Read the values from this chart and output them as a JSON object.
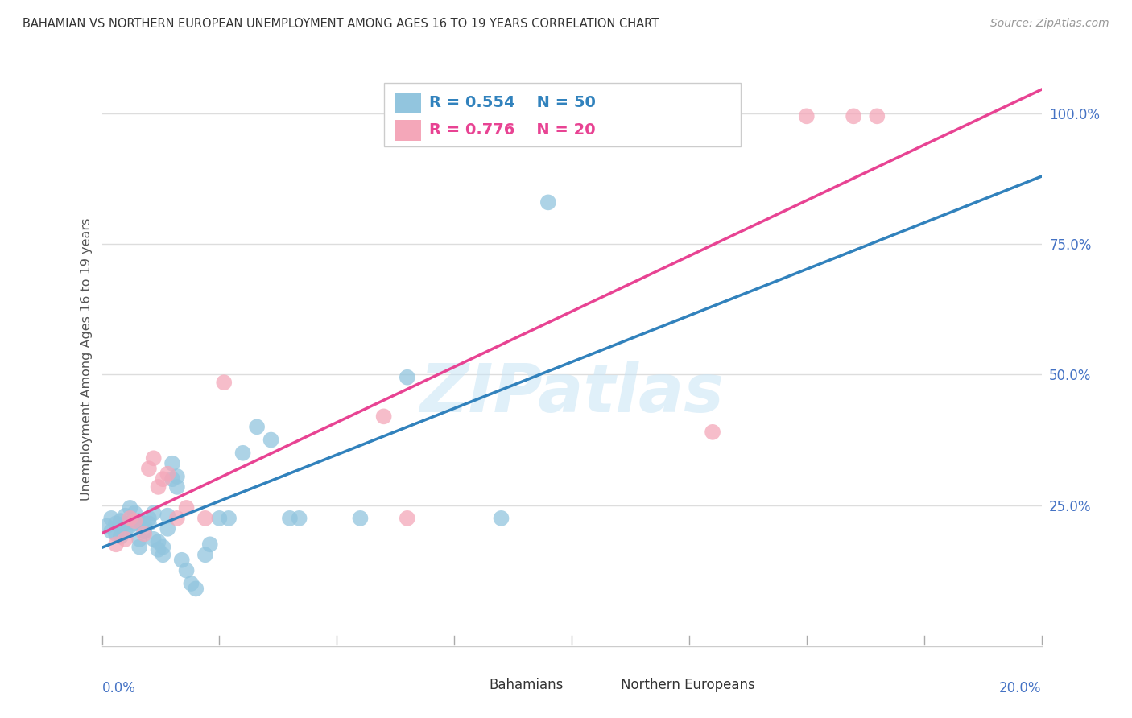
{
  "title": "BAHAMIAN VS NORTHERN EUROPEAN UNEMPLOYMENT AMONG AGES 16 TO 19 YEARS CORRELATION CHART",
  "source": "Source: ZipAtlas.com",
  "ylabel": "Unemployment Among Ages 16 to 19 years",
  "bahamian_color": "#92c5de",
  "northern_color": "#f4a7b9",
  "bahamian_line_color": "#3182bd",
  "northern_line_color": "#e84393",
  "dashed_line_color": "#aaaaaa",
  "axis_color": "#4472c4",
  "R_bahamian": 0.554,
  "N_bahamian": 50,
  "R_northern": 0.776,
  "N_northern": 20,
  "xlim": [
    0.0,
    0.2
  ],
  "ylim": [
    -0.02,
    1.08
  ],
  "yticks": [
    0.25,
    0.5,
    0.75,
    1.0
  ],
  "ytick_labels": [
    "25.0%",
    "50.0%",
    "75.0%",
    "100.0%"
  ],
  "watermark": "ZIPatlas",
  "background_color": "#ffffff",
  "grid_color": "#dddddd",
  "bahamian_x": [
    0.001,
    0.002,
    0.002,
    0.003,
    0.003,
    0.004,
    0.004,
    0.005,
    0.005,
    0.005,
    0.006,
    0.006,
    0.007,
    0.007,
    0.008,
    0.008,
    0.008,
    0.009,
    0.009,
    0.01,
    0.01,
    0.011,
    0.011,
    0.012,
    0.012,
    0.013,
    0.013,
    0.014,
    0.014,
    0.015,
    0.015,
    0.016,
    0.016,
    0.017,
    0.018,
    0.019,
    0.02,
    0.022,
    0.023,
    0.025,
    0.027,
    0.03,
    0.033,
    0.036,
    0.04,
    0.042,
    0.055,
    0.065,
    0.085,
    0.095
  ],
  "bahamian_y": [
    0.21,
    0.225,
    0.2,
    0.215,
    0.195,
    0.22,
    0.19,
    0.2,
    0.23,
    0.215,
    0.245,
    0.21,
    0.235,
    0.215,
    0.22,
    0.17,
    0.185,
    0.215,
    0.2,
    0.215,
    0.225,
    0.235,
    0.185,
    0.18,
    0.165,
    0.155,
    0.17,
    0.205,
    0.23,
    0.3,
    0.33,
    0.285,
    0.305,
    0.145,
    0.125,
    0.1,
    0.09,
    0.155,
    0.175,
    0.225,
    0.225,
    0.35,
    0.4,
    0.375,
    0.225,
    0.225,
    0.225,
    0.495,
    0.225,
    0.83
  ],
  "northern_x": [
    0.003,
    0.005,
    0.006,
    0.007,
    0.009,
    0.01,
    0.011,
    0.012,
    0.013,
    0.014,
    0.016,
    0.018,
    0.022,
    0.026,
    0.06,
    0.065,
    0.13,
    0.15,
    0.16,
    0.165
  ],
  "northern_y": [
    0.175,
    0.185,
    0.225,
    0.22,
    0.195,
    0.32,
    0.34,
    0.285,
    0.3,
    0.31,
    0.225,
    0.245,
    0.225,
    0.485,
    0.42,
    0.225,
    0.39,
    0.995,
    0.995,
    0.995
  ]
}
